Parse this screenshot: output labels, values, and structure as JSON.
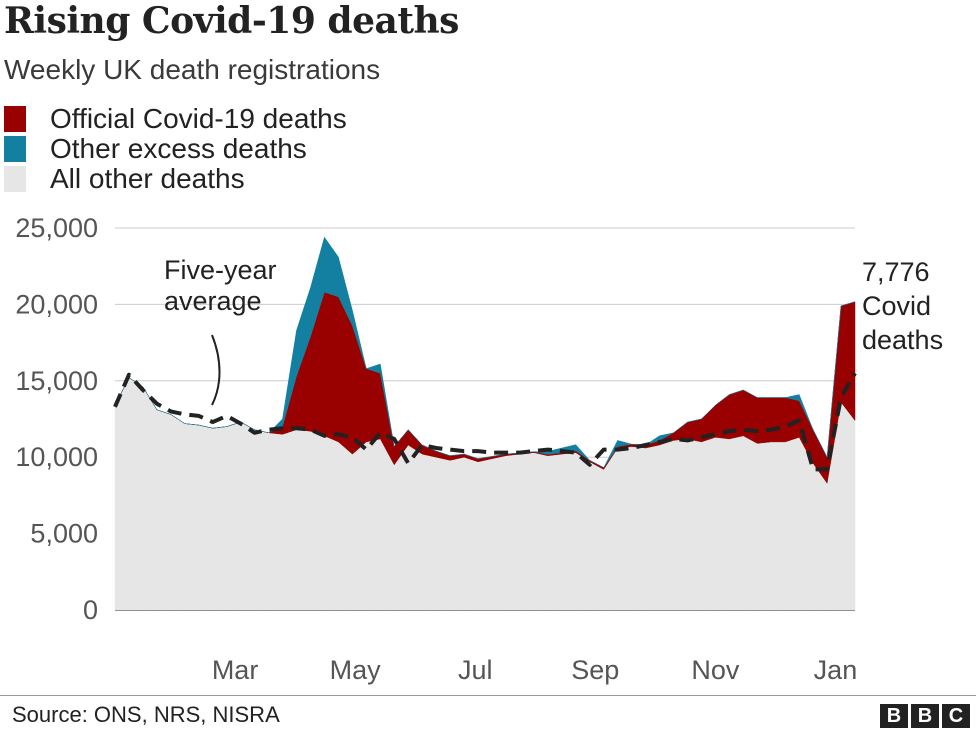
{
  "header": {
    "title": "Rising Covid-19 deaths",
    "subtitle": "Weekly UK death registrations"
  },
  "legend": [
    {
      "label": "Official Covid-19 deaths",
      "color": "#990000"
    },
    {
      "label": "Other excess deaths",
      "color": "#1380a1"
    },
    {
      "label": "All other deaths",
      "color": "#e6e6e6"
    }
  ],
  "annotations": {
    "average_label": [
      "Five-year",
      "average"
    ],
    "covid_label": [
      "7,776",
      "Covid",
      "deaths"
    ]
  },
  "footer": {
    "source": "Source: ONS, NRS, NISRA",
    "logo": [
      "B",
      "B",
      "C"
    ]
  },
  "chart_data": {
    "type": "area",
    "ylim": [
      0,
      25000
    ],
    "yticks": [
      0,
      5000,
      10000,
      15000,
      20000,
      25000
    ],
    "ytick_labels": [
      "0",
      "5,000",
      "10,000",
      "15,000",
      "20,000",
      "25,000"
    ],
    "xtick_labels": [
      "Mar",
      "May",
      "Jul",
      "Sep",
      "Nov",
      "Jan"
    ],
    "xtick_weeks": [
      9.6,
      18.2,
      26.8,
      35.4,
      44.0,
      52.6
    ],
    "grid": true,
    "weeks": [
      1,
      2,
      3,
      4,
      5,
      6,
      7,
      8,
      9,
      10,
      11,
      12,
      13,
      14,
      15,
      16,
      17,
      18,
      19,
      20,
      21,
      22,
      23,
      24,
      25,
      26,
      27,
      28,
      29,
      30,
      31,
      32,
      33,
      34,
      35,
      36,
      37,
      38,
      39,
      40,
      41,
      42,
      43,
      44,
      45,
      46,
      47,
      48,
      49,
      50,
      51,
      52,
      53,
      54
    ],
    "series": [
      {
        "name": "All other deaths",
        "values": [
          13400,
          15200,
          14600,
          13100,
          12800,
          12200,
          12100,
          11900,
          12000,
          12300,
          11800,
          11600,
          11500,
          11800,
          11700,
          11400,
          11000,
          10200,
          11000,
          11200,
          9500,
          10800,
          10200,
          10000,
          9800,
          10000,
          9700,
          9900,
          10100,
          10200,
          10300,
          10100,
          10200,
          10300,
          9700,
          9200,
          10600,
          10700,
          10600,
          10800,
          11100,
          11200,
          11000,
          11300,
          11200,
          11400,
          10900,
          11000,
          11000,
          11300,
          9600,
          8300,
          13600,
          12400
        ]
      },
      {
        "name": "Official Covid-19 deaths",
        "values": [
          0,
          0,
          0,
          0,
          0,
          0,
          0,
          0,
          0,
          0,
          0,
          0,
          500,
          3500,
          6200,
          9400,
          9500,
          8400,
          4800,
          4300,
          1200,
          1000,
          600,
          400,
          300,
          200,
          200,
          150,
          100,
          80,
          60,
          80,
          100,
          120,
          100,
          120,
          100,
          150,
          200,
          300,
          500,
          1100,
          1500,
          2100,
          2900,
          3000,
          3000,
          2900,
          2900,
          2400,
          2200,
          1700,
          6300,
          7776
        ]
      },
      {
        "name": "Other excess deaths",
        "values": [
          0,
          0,
          0,
          0,
          0,
          0,
          0,
          0,
          0,
          0,
          0,
          0,
          500,
          3000,
          3200,
          3600,
          2600,
          1000,
          0,
          600,
          0,
          0,
          0,
          0,
          0,
          0,
          0,
          0,
          0,
          0,
          0,
          200,
          300,
          400,
          0,
          0,
          400,
          0,
          0,
          300,
          0,
          0,
          0,
          0,
          0,
          0,
          0,
          0,
          0,
          400,
          0,
          0,
          0,
          0
        ]
      },
      {
        "name": "Five-year average",
        "values": [
          13300,
          15400,
          14400,
          13500,
          13000,
          12800,
          12700,
          12300,
          12700,
          12200,
          11600,
          11800,
          11900,
          11900,
          11800,
          11400,
          11500,
          11300,
          10500,
          11600,
          11200,
          9600,
          10800,
          10600,
          10500,
          10400,
          10400,
          10300,
          10300,
          10300,
          10400,
          10500,
          10400,
          10300,
          9500,
          10500,
          10500,
          10600,
          10800,
          11000,
          11200,
          11100,
          11300,
          11500,
          11700,
          11800,
          11700,
          11800,
          12000,
          12400,
          9200,
          9200,
          13900,
          15500
        ]
      }
    ]
  }
}
